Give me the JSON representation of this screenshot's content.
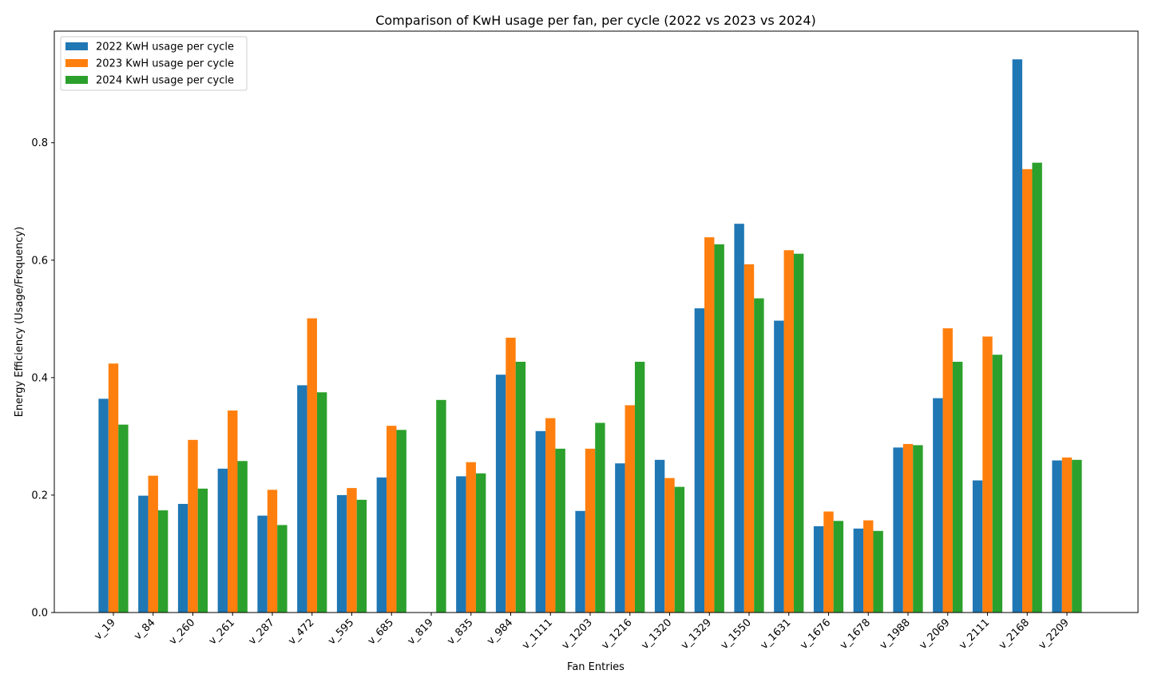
{
  "chart_data": {
    "type": "bar",
    "title": "Comparison of KwH usage per fan, per cycle (2022 vs 2023 vs 2024)",
    "xlabel": "Fan Entries",
    "ylabel": "Energy Efficiency (Usage/Frequency)",
    "ylim": [
      0,
      0.99
    ],
    "yticks": [
      0.0,
      0.2,
      0.4,
      0.6,
      0.8
    ],
    "ytick_labels": [
      "0.0",
      "0.2",
      "0.4",
      "0.6",
      "0.8"
    ],
    "grid": false,
    "legend_position": "top-left",
    "categories": [
      "v_19",
      "v_84",
      "v_260",
      "v_261",
      "v_287",
      "v_472",
      "v_595",
      "v_685",
      "v_819",
      "v_835",
      "v_984",
      "v_1111",
      "v_1203",
      "v_1216",
      "v_1320",
      "v_1329",
      "v_1550",
      "v_1631",
      "v_1676",
      "v_1678",
      "v_1988",
      "v_2069",
      "v_2111",
      "v_2168",
      "v_2209"
    ],
    "series": [
      {
        "name": "2022 KwH usage per cycle",
        "color": "#1f77b4",
        "values": [
          0.364,
          0.199,
          0.185,
          0.245,
          0.165,
          0.387,
          0.2,
          0.23,
          0.0,
          0.232,
          0.405,
          0.309,
          0.173,
          0.254,
          0.26,
          0.518,
          0.662,
          0.497,
          0.147,
          0.143,
          0.281,
          0.365,
          0.225,
          0.942,
          0.259
        ]
      },
      {
        "name": "2023 KwH usage per cycle",
        "color": "#ff7f0e",
        "values": [
          0.424,
          0.233,
          0.294,
          0.344,
          0.209,
          0.501,
          0.212,
          0.318,
          0.0,
          0.256,
          0.468,
          0.331,
          0.279,
          0.353,
          0.229,
          0.639,
          0.593,
          0.617,
          0.172,
          0.157,
          0.287,
          0.484,
          0.47,
          0.755,
          0.264
        ]
      },
      {
        "name": "2024 KwH usage per cycle",
        "color": "#2ca02c",
        "values": [
          0.32,
          0.174,
          0.211,
          0.258,
          0.149,
          0.375,
          0.192,
          0.311,
          0.362,
          0.237,
          0.427,
          0.279,
          0.323,
          0.427,
          0.214,
          0.627,
          0.535,
          0.611,
          0.156,
          0.139,
          0.285,
          0.427,
          0.439,
          0.766,
          0.26
        ]
      }
    ]
  }
}
